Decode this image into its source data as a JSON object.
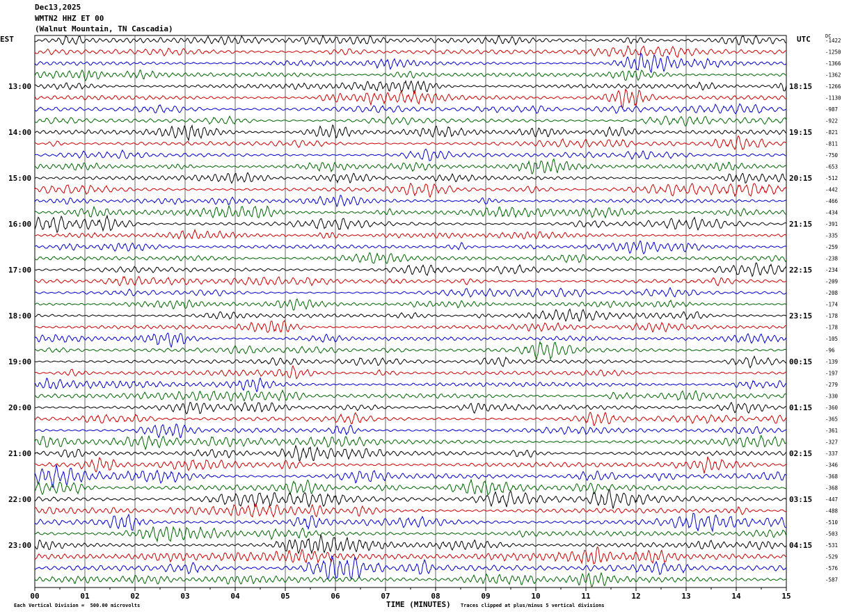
{
  "header": {
    "date": "Dec13,2025",
    "channel": "WMTN2 HHZ ET 00",
    "station": "(Walnut Mountain, TN Cascadia)"
  },
  "left_tz": "EST",
  "right_tz": "UTC",
  "right_top_label": "DC",
  "footer": {
    "scale_note": "Each Vertical Division =  500.00 microvolts",
    "xlabel": "TIME (MINUTES)",
    "clip_note": "Traces clipped at plus/minus 5 vertical divisions"
  },
  "colors": {
    "trace_cycle": [
      "#000000",
      "#cc0000",
      "#0000cc",
      "#006600"
    ],
    "grid": "#000000"
  },
  "chart_data": {
    "type": "line",
    "title": "",
    "xlabel": "TIME (MINUTES)",
    "xlim": [
      0,
      15
    ],
    "x_ticks": [
      "00",
      "01",
      "02",
      "03",
      "04",
      "05",
      "06",
      "07",
      "08",
      "09",
      "10",
      "11",
      "12",
      "13",
      "14",
      "15"
    ],
    "left_hour_labels": [
      "13:00",
      "14:00",
      "15:00",
      "16:00",
      "17:00",
      "18:00",
      "19:00",
      "20:00",
      "21:00",
      "22:00",
      "23:00"
    ],
    "right_hour_labels": [
      "18:15",
      "19:15",
      "20:15",
      "21:15",
      "22:15",
      "23:15",
      "00:15",
      "01:15",
      "02:15",
      "03:15",
      "04:15"
    ],
    "trace_count": 48,
    "trace_offsets": [
      -1422,
      -1250,
      -1366,
      -1362,
      -1266,
      -1130,
      -987,
      -922,
      -821,
      -811,
      -750,
      -653,
      -512,
      -442,
      -466,
      -434,
      -391,
      -335,
      -259,
      -238,
      -234,
      -209,
      -208,
      -174,
      -178,
      -178,
      -105,
      -96,
      -139,
      -197,
      -279,
      -330,
      -360,
      -365,
      -361,
      -327,
      -337,
      -346,
      -368,
      -368,
      -447,
      -488,
      -510,
      -503,
      -531,
      -529,
      -576,
      -587
    ],
    "trace_amplitude_divisions": [
      0.9,
      0.8,
      0.7,
      0.7,
      0.8,
      0.8,
      0.7,
      0.7,
      0.8,
      0.7,
      0.7,
      0.8,
      0.7,
      0.8,
      0.7,
      0.9,
      0.8,
      0.7,
      0.7,
      0.7,
      0.7,
      0.7,
      0.6,
      0.7,
      0.7,
      0.7,
      0.7,
      0.8,
      0.7,
      0.7,
      0.8,
      0.8,
      0.8,
      0.8,
      0.8,
      0.8,
      0.8,
      0.9,
      0.9,
      1.0,
      1.0,
      0.9,
      1.0,
      0.9,
      0.9,
      1.0,
      1.0,
      1.0
    ]
  }
}
